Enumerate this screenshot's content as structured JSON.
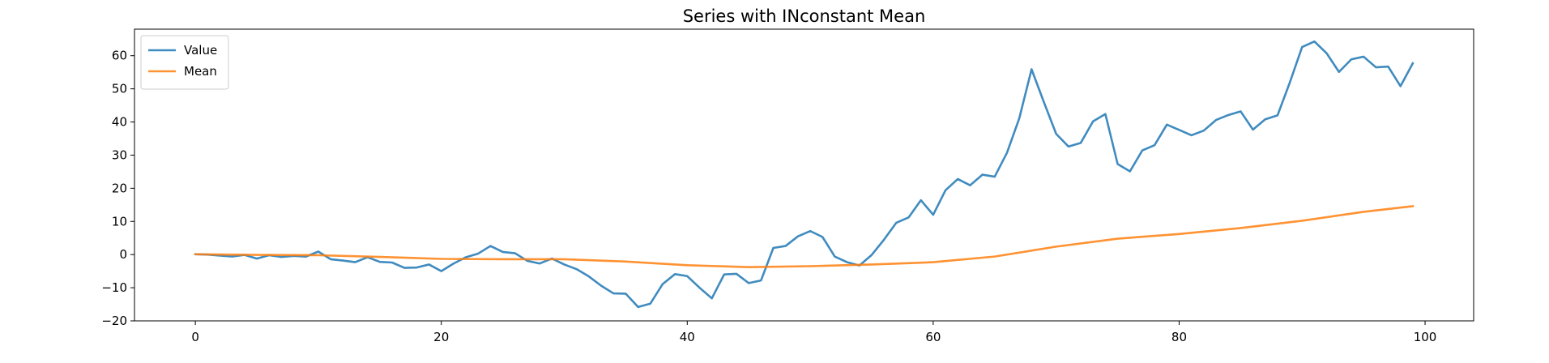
{
  "chart_data": {
    "type": "line",
    "title": "Series with INconstant Mean",
    "xlabel": "",
    "ylabel": "",
    "xlim": [
      -4.95,
      103.95
    ],
    "ylim": [
      -20,
      68
    ],
    "xticks": [
      0,
      20,
      40,
      60,
      80,
      100
    ],
    "yticks": [
      -20,
      -10,
      0,
      10,
      20,
      30,
      40,
      50,
      60
    ],
    "grid": false,
    "legend": "top-left",
    "series": [
      {
        "name": "Value",
        "color": "#1f77b4",
        "x": [
          0,
          1,
          2,
          3,
          4,
          5,
          6,
          7,
          8,
          9,
          10,
          11,
          12,
          13,
          14,
          15,
          16,
          17,
          18,
          19,
          20,
          21,
          22,
          23,
          24,
          25,
          26,
          27,
          28,
          29,
          30,
          31,
          32,
          33,
          34,
          35,
          36,
          37,
          38,
          39,
          40,
          41,
          42,
          43,
          44,
          45,
          46,
          47,
          48,
          49,
          50,
          51,
          52,
          53,
          54,
          55,
          56,
          57,
          58,
          59,
          60,
          61,
          62,
          63,
          64,
          65,
          66,
          67,
          68,
          69,
          70,
          71,
          72,
          73,
          74,
          75,
          76,
          77,
          78,
          79,
          80,
          81,
          82,
          83,
          84,
          85,
          86,
          87,
          88,
          89,
          90,
          91,
          92,
          93,
          94,
          95,
          96,
          97,
          98,
          99
        ],
        "values": [
          0.1,
          0.0,
          -0.3,
          -0.6,
          -0.1,
          -1.2,
          -0.2,
          -0.7,
          -0.4,
          -0.6,
          0.9,
          -1.4,
          -1.8,
          -2.3,
          -0.8,
          -2.2,
          -2.4,
          -4.0,
          -3.9,
          -3.0,
          -5.0,
          -2.7,
          -0.8,
          0.3,
          2.6,
          0.8,
          0.4,
          -1.9,
          -2.7,
          -1.2,
          -3.0,
          -4.4,
          -6.6,
          -9.4,
          -11.7,
          -11.8,
          -15.8,
          -14.8,
          -8.9,
          -5.9,
          -6.5,
          -10.0,
          -13.2,
          -6.0,
          -5.8,
          -8.6,
          -7.8,
          2.0,
          2.6,
          5.5,
          7.1,
          5.3,
          -0.6,
          -2.3,
          -3.3,
          -0.1,
          4.5,
          9.6,
          11.2,
          16.4,
          12.0,
          19.4,
          22.8,
          20.9,
          24.1,
          23.5,
          30.7,
          41.1,
          55.9,
          46.0,
          36.4,
          32.6,
          33.7,
          40.2,
          42.4,
          27.3,
          25.1,
          31.4,
          33.0,
          39.2,
          37.6,
          36.0,
          37.4,
          40.6,
          42.1,
          43.2,
          37.7,
          40.8,
          42.0,
          51.9,
          62.6,
          64.3,
          60.7,
          55.1,
          58.9,
          59.7,
          56.5,
          56.7,
          50.8,
          57.7
        ]
      },
      {
        "name": "Mean",
        "color": "#ff7f0e",
        "x": [
          0,
          5,
          10,
          15,
          20,
          25,
          30,
          35,
          40,
          45,
          50,
          55,
          60,
          65,
          70,
          75,
          80,
          85,
          90,
          95,
          99
        ],
        "values": [
          0.1,
          -0.1,
          -0.2,
          -0.7,
          -1.3,
          -1.4,
          -1.4,
          -2.1,
          -3.2,
          -3.8,
          -3.5,
          -3.0,
          -2.3,
          -0.6,
          2.4,
          4.8,
          6.2,
          8.0,
          10.2,
          12.9,
          14.6
        ]
      }
    ]
  }
}
